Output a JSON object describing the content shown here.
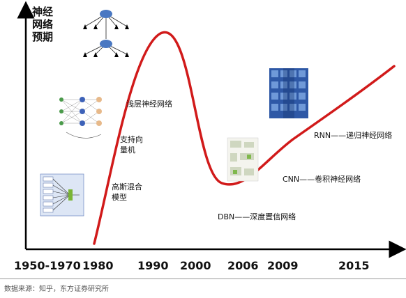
{
  "y_axis_label": [
    "神经",
    "网络",
    "预期"
  ],
  "events": {
    "shallow_nn": "浅层神经网络",
    "svm_line1": "支持向",
    "svm_line2": "量机",
    "gmm_line1": "高斯混合",
    "gmm_line2": "模型",
    "dbn": "DBN——深度置信网络",
    "cnn": "CNN——卷积神经网络",
    "rnn": "RNN——递归神经网络"
  },
  "years": [
    "1950-1970",
    "1980",
    "1990",
    "2000",
    "2006",
    "2009",
    "2015"
  ],
  "source": "数据来源：知乎，东方证券研究所",
  "colors": {
    "curve": "#d11a1a",
    "axis": "#000000"
  },
  "icons": [
    "perceptron-diagram-icon",
    "network-layers-diagram-icon",
    "gmm-diagram-icon",
    "dbn-figure-icon",
    "cnn-cube-icon"
  ]
}
